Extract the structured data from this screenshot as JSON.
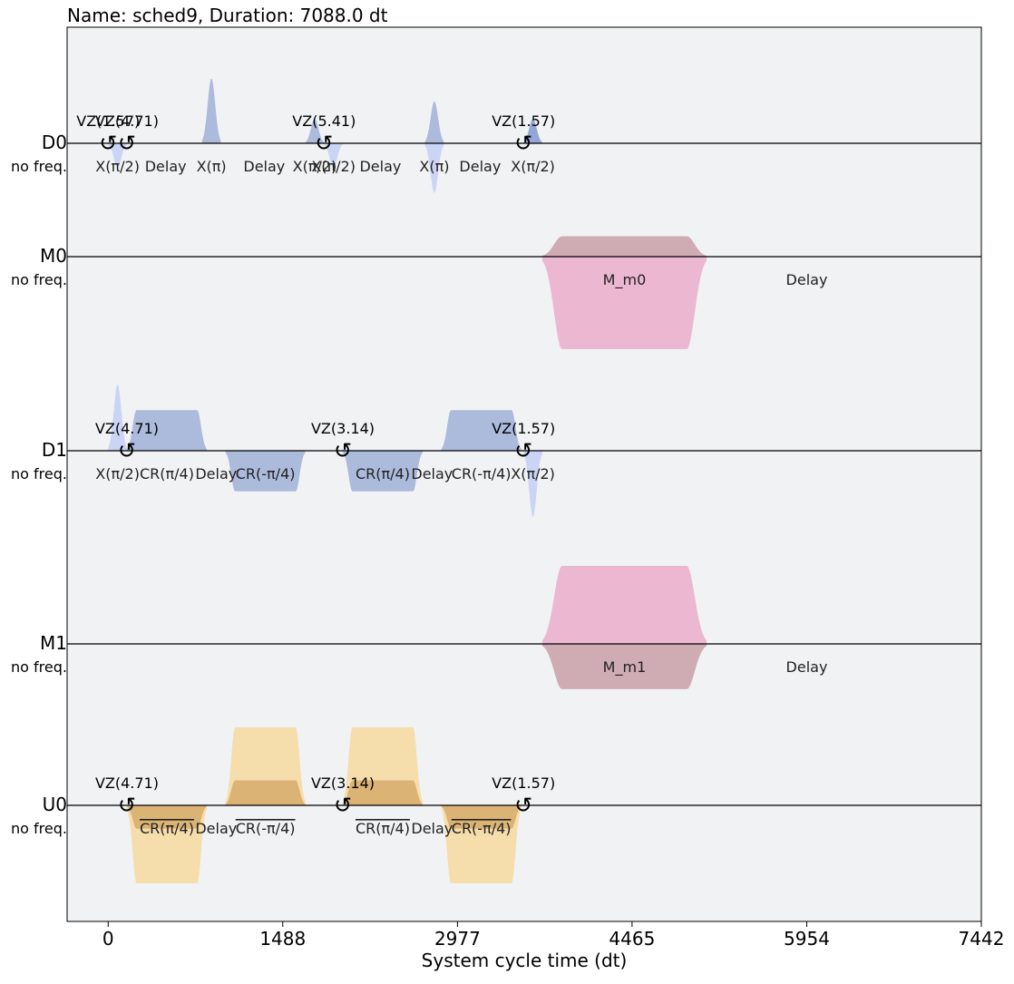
{
  "chart_data": {
    "type": "pulse-schedule",
    "title": "Name: sched9, Duration: 7088.0 dt",
    "xlabel": "System cycle time (dt)",
    "xlim": [
      -350,
      7442
    ],
    "x_ticks": [
      0,
      1488,
      2977,
      4465,
      5954,
      7442
    ],
    "x_tick_labels": [
      "0",
      "1488",
      "2977",
      "4465",
      "5954",
      "7442"
    ],
    "channels": [
      {
        "name": "D0",
        "sublabel": "no freq.",
        "pulses": [
          {
            "kind": "gauss",
            "t0": 0,
            "t1": 160,
            "amp": 0.32,
            "color": "#c7d3f4",
            "sign": -1
          },
          {
            "kind": "gauss",
            "t0": 800,
            "t1": 960,
            "amp": 0.85,
            "color": "#a8b6da",
            "sign": 1
          },
          {
            "kind": "gauss",
            "t0": 1680,
            "t1": 1840,
            "amp": 0.32,
            "color": "#a8b6da",
            "sign": 1
          },
          {
            "kind": "gauss",
            "t0": 1840,
            "t1": 2000,
            "amp": 0.32,
            "color": "#c7d3f4",
            "sign": -1
          },
          {
            "kind": "gauss",
            "t0": 2700,
            "t1": 2860,
            "amp": 0.55,
            "color": "#a8b6da",
            "sign": 1
          },
          {
            "kind": "gauss",
            "t0": 2700,
            "t1": 2860,
            "amp": 0.65,
            "color": "#c7d3f4",
            "sign": -1
          },
          {
            "kind": "gauss",
            "t0": 3540,
            "t1": 3700,
            "amp": 0.32,
            "color": "#8ea0d8",
            "sign": 1
          }
        ],
        "frames": [
          {
            "t": 0,
            "label": "VZ(1.57)"
          },
          {
            "t": 160,
            "label": "VZ(4.71)"
          },
          {
            "t": 1840,
            "label": "VZ(5.41)"
          },
          {
            "t": 3540,
            "label": "VZ(1.57)"
          }
        ],
        "labels": [
          {
            "t": 80,
            "text": "X(π/2)"
          },
          {
            "t": 490,
            "text": "Delay"
          },
          {
            "t": 880,
            "text": "X(π)"
          },
          {
            "t": 1330,
            "text": "Delay"
          },
          {
            "t": 1760,
            "text": "X(π/2)"
          },
          {
            "t": 1920,
            "text": "X(π/2)"
          },
          {
            "t": 2320,
            "text": "Delay"
          },
          {
            "t": 2780,
            "text": "X(π)"
          },
          {
            "t": 3170,
            "text": "Delay"
          },
          {
            "t": 3620,
            "text": "X(π/2)"
          }
        ]
      },
      {
        "name": "M0",
        "sublabel": "no freq.",
        "pulses": [
          {
            "kind": "flat",
            "t0": 3700,
            "t1": 5100,
            "amp": 0.22,
            "color": "#cca7b0",
            "sign": 1
          },
          {
            "kind": "flat",
            "t0": 3700,
            "t1": 5100,
            "amp": 1.0,
            "color": "#ebb3cf",
            "sign": -1
          }
        ],
        "frames": [],
        "labels": [
          {
            "t": 4400,
            "text": "M_m0"
          },
          {
            "t": 5954,
            "text": "Delay"
          }
        ]
      },
      {
        "name": "D1",
        "sublabel": "no freq.",
        "pulses": [
          {
            "kind": "gauss",
            "t0": 0,
            "t1": 160,
            "amp": 0.85,
            "color": "#c7d3f4",
            "sign": 1
          },
          {
            "kind": "flat",
            "t0": 160,
            "t1": 840,
            "amp": 0.52,
            "color": "#a8b6da",
            "sign": 1
          },
          {
            "kind": "flat",
            "t0": 1000,
            "t1": 1680,
            "amp": 0.52,
            "color": "#a8b6da",
            "sign": -1
          },
          {
            "kind": "flat",
            "t0": 2000,
            "t1": 2680,
            "amp": 0.52,
            "color": "#a8b6da",
            "sign": -1
          },
          {
            "kind": "flat",
            "t0": 2840,
            "t1": 3520,
            "amp": 0.52,
            "color": "#a8b6da",
            "sign": 1
          },
          {
            "kind": "gauss",
            "t0": 3540,
            "t1": 3700,
            "amp": 0.85,
            "color": "#c7d3f4",
            "sign": -1
          }
        ],
        "frames": [
          {
            "t": 160,
            "label": "VZ(4.71)"
          },
          {
            "t": 2000,
            "label": "VZ(3.14)"
          },
          {
            "t": 3540,
            "label": "VZ(1.57)"
          }
        ],
        "labels": [
          {
            "t": 80,
            "text": "X(π/2)"
          },
          {
            "t": 500,
            "text": "CR(π/4)"
          },
          {
            "t": 920,
            "text": "Delay"
          },
          {
            "t": 1340,
            "text": "CR(-π/4)"
          },
          {
            "t": 2340,
            "text": "CR(π/4)"
          },
          {
            "t": 2760,
            "text": "Delay"
          },
          {
            "t": 3180,
            "text": "CR(-π/4)"
          },
          {
            "t": 3620,
            "text": "X(π/2)"
          }
        ]
      },
      {
        "name": "M1",
        "sublabel": "no freq.",
        "pulses": [
          {
            "kind": "flat",
            "t0": 3700,
            "t1": 5100,
            "amp": 1.0,
            "color": "#ebb3cf",
            "sign": 1
          },
          {
            "kind": "flat",
            "t0": 3700,
            "t1": 5100,
            "amp": 0.58,
            "color": "#cca7b0",
            "sign": -1
          }
        ],
        "frames": [],
        "labels": [
          {
            "t": 4400,
            "text": "M_m1"
          },
          {
            "t": 5954,
            "text": "Delay"
          }
        ]
      },
      {
        "name": "U0",
        "sublabel": "no freq.",
        "pulses": [
          {
            "kind": "flat",
            "t0": 160,
            "t1": 840,
            "amp": 1.0,
            "color": "#f5dba8",
            "sign": -1
          },
          {
            "kind": "flat",
            "t0": 1000,
            "t1": 1680,
            "amp": 1.0,
            "color": "#f5dba8",
            "sign": 1
          },
          {
            "kind": "flat",
            "t0": 1000,
            "t1": 1680,
            "amp": 0.32,
            "color": "#d9b172",
            "sign": 1
          },
          {
            "kind": "flat",
            "t0": 2000,
            "t1": 2680,
            "amp": 1.0,
            "color": "#f5dba8",
            "sign": 1
          },
          {
            "kind": "flat",
            "t0": 2000,
            "t1": 2680,
            "amp": 0.32,
            "color": "#d9b172",
            "sign": 1
          },
          {
            "kind": "flat",
            "t0": 2840,
            "t1": 3520,
            "amp": 1.0,
            "color": "#f5dba8",
            "sign": -1
          },
          {
            "kind": "flat",
            "t0": 160,
            "t1": 840,
            "amp": 0.3,
            "color": "#d9b172",
            "sign": -1
          },
          {
            "kind": "flat",
            "t0": 2840,
            "t1": 3520,
            "amp": 0.3,
            "color": "#d9b172",
            "sign": -1
          }
        ],
        "frames": [
          {
            "t": 160,
            "label": "VZ(4.71)"
          },
          {
            "t": 2000,
            "label": "VZ(3.14)"
          },
          {
            "t": 3540,
            "label": "VZ(1.57)"
          }
        ],
        "labels": [
          {
            "t": 500,
            "text": "CR(π/4)",
            "overline": true
          },
          {
            "t": 920,
            "text": "Delay"
          },
          {
            "t": 1340,
            "text": "CR(-π/4)",
            "overline": true
          },
          {
            "t": 2340,
            "text": "CR(π/4)",
            "overline": true
          },
          {
            "t": 2760,
            "text": "Delay"
          },
          {
            "t": 3180,
            "text": "CR(-π/4)",
            "overline": true
          }
        ]
      }
    ]
  }
}
